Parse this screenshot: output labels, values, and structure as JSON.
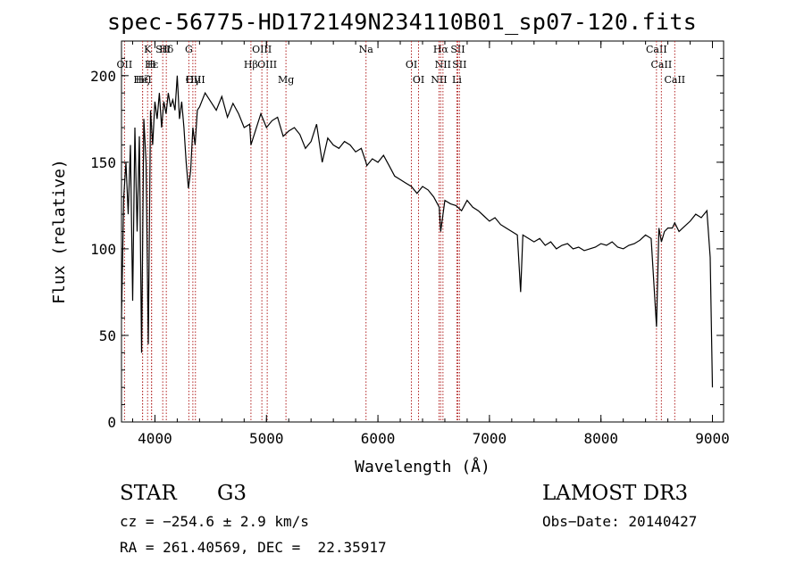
{
  "chart_data": {
    "type": "line",
    "title": "spec-56775-HD172149N234110B01_sp07-120.fits",
    "xlabel": "Wavelength (Å)",
    "ylabel": "Flux (relative)",
    "xlim": [
      3700,
      9100
    ],
    "ylim": [
      0,
      220
    ],
    "xticks": [
      4000,
      5000,
      6000,
      7000,
      8000,
      9000
    ],
    "yticks": [
      0,
      50,
      100,
      150,
      200
    ],
    "grid": false,
    "series": [
      {
        "x": [
          3700,
          3720,
          3740,
          3760,
          3780,
          3800,
          3820,
          3840,
          3860,
          3880,
          3900,
          3920,
          3940,
          3960,
          3980,
          4000,
          4020,
          4040,
          4060,
          4080,
          4100,
          4120,
          4140,
          4160,
          4180,
          4200,
          4220,
          4240,
          4260,
          4280,
          4300,
          4320,
          4340,
          4360,
          4380,
          4400,
          4450,
          4500,
          4550,
          4600,
          4650,
          4700,
          4750,
          4800,
          4850,
          4861,
          4900,
          4950,
          5000,
          5050,
          5100,
          5150,
          5200,
          5250,
          5300,
          5350,
          5400,
          5450,
          5500,
          5550,
          5600,
          5650,
          5700,
          5750,
          5800,
          5850,
          5893,
          5900,
          5950,
          6000,
          6050,
          6100,
          6150,
          6200,
          6250,
          6300,
          6350,
          6400,
          6450,
          6500,
          6550,
          6563,
          6600,
          6650,
          6700,
          6750,
          6800,
          6850,
          6900,
          6950,
          7000,
          7050,
          7100,
          7150,
          7200,
          7250,
          7280,
          7300,
          7350,
          7400,
          7450,
          7500,
          7550,
          7600,
          7650,
          7700,
          7750,
          7800,
          7850,
          7900,
          7950,
          8000,
          8050,
          8100,
          8150,
          8200,
          8250,
          8300,
          8350,
          8400,
          8450,
          8498,
          8520,
          8542,
          8570,
          8600,
          8640,
          8662,
          8700,
          8750,
          8800,
          8850,
          8900,
          8950,
          8980,
          9000
        ],
        "y": [
          60,
          130,
          150,
          120,
          160,
          70,
          170,
          110,
          165,
          40,
          175,
          150,
          45,
          180,
          160,
          185,
          175,
          190,
          170,
          185,
          178,
          190,
          182,
          186,
          180,
          200,
          175,
          185,
          170,
          150,
          135,
          145,
          170,
          160,
          180,
          182,
          190,
          185,
          180,
          188,
          176,
          184,
          178,
          170,
          172,
          160,
          168,
          178,
          170,
          174,
          176,
          165,
          168,
          170,
          166,
          158,
          162,
          172,
          150,
          164,
          160,
          158,
          162,
          160,
          156,
          158,
          150,
          148,
          152,
          150,
          154,
          148,
          142,
          140,
          138,
          136,
          132,
          136,
          134,
          130,
          124,
          110,
          128,
          126,
          125,
          122,
          128,
          124,
          122,
          119,
          116,
          118,
          114,
          112,
          110,
          108,
          75,
          108,
          106,
          104,
          106,
          102,
          104,
          100,
          102,
          103,
          100,
          101,
          99,
          100,
          101,
          103,
          102,
          104,
          101,
          100,
          102,
          103,
          105,
          108,
          106,
          55,
          112,
          104,
          110,
          112,
          112,
          115,
          110,
          113,
          116,
          120,
          118,
          122,
          95,
          20
        ]
      }
    ],
    "annotations": [
      {
        "label": "Hδ",
        "x": 4102
      },
      {
        "label": "OII",
        "x": 3727
      },
      {
        "label": "OIII",
        "x": 4363
      },
      {
        "label": "OIII",
        "x": 4959
      },
      {
        "label": "OIII",
        "x": 5007
      },
      {
        "label": "Hγ",
        "x": 4340
      },
      {
        "label": "G",
        "x": 4304
      },
      {
        "label": "Hβ",
        "x": 4861
      },
      {
        "label": "Mg",
        "x": 5175
      },
      {
        "label": "Na",
        "x": 5893
      },
      {
        "label": "OI",
        "x": 6300
      },
      {
        "label": "OI",
        "x": 6364
      },
      {
        "label": "Hα",
        "x": 6563
      },
      {
        "label": "NII",
        "x": 6583
      },
      {
        "label": "NII",
        "x": 6548
      },
      {
        "label": "SII",
        "x": 6716
      },
      {
        "label": "SII",
        "x": 6731
      },
      {
        "label": "Li",
        "x": 6708
      },
      {
        "label": "CaII",
        "x": 8498
      },
      {
        "label": "CaII",
        "x": 8542
      },
      {
        "label": "CaII",
        "x": 8662
      },
      {
        "label": "K",
        "x": 3934
      },
      {
        "label": "H",
        "x": 3969
      },
      {
        "label": "HeI",
        "x": 3889
      },
      {
        "label": "SII",
        "x": 4070
      },
      {
        "label": "Hε",
        "x": 3970
      },
      {
        "label": "Hζ",
        "x": 3889
      }
    ],
    "line_color": "#000000",
    "marker_color": "#b22222"
  },
  "info": {
    "object": "STAR",
    "subclass": "G3",
    "survey": "LAMOST DR3",
    "cz": "cz = −254.6 ± 2.9 km/s",
    "obs_date": "Obs−Date: 20140427",
    "coords": "RA = 261.40569, DEC =  22.35917"
  }
}
